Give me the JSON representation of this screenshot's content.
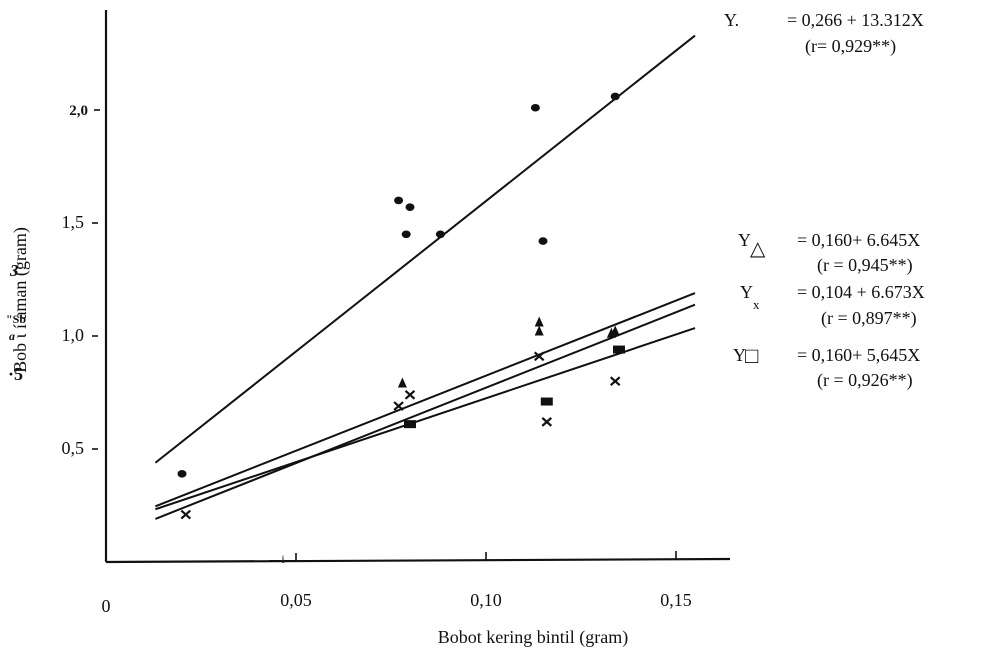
{
  "chart_data": {
    "type": "scatter",
    "title": "",
    "xlabel": "Bobot kering bintil (gram)",
    "ylabel": "Bob ι í aman (gram)",
    "ylabel_fragments": [
      "3",
      "\"Sb",
      "a",
      "·5"
    ],
    "xlim": [
      0,
      0.18
    ],
    "ylim": [
      0,
      2.3
    ],
    "x_tick_values": [
      0,
      0.05,
      0.1,
      0.15
    ],
    "x_tick_labels": [
      "0",
      "0,05",
      "0,10",
      "0,15"
    ],
    "x_axis_artifact": "—i—",
    "y_tick_values": [
      0.5,
      1.0,
      1.5,
      2.0
    ],
    "y_tick_labels": [
      "0,5",
      "1,0",
      "1,5",
      "2,0"
    ],
    "grid": false,
    "series": [
      {
        "marker": "dot",
        "points": [
          [
            0.02,
            0.39
          ],
          [
            0.077,
            1.6
          ],
          [
            0.08,
            1.57
          ],
          [
            0.079,
            1.45
          ],
          [
            0.088,
            1.45
          ],
          [
            0.113,
            2.01
          ],
          [
            0.134,
            2.06
          ],
          [
            0.115,
            1.42
          ]
        ],
        "fit": {
          "intercept": 0.266,
          "slope": 13.312,
          "x_range": [
            0.013,
            0.155
          ]
        }
      },
      {
        "marker": "triangle",
        "points": [
          [
            0.078,
            0.79
          ],
          [
            0.114,
            1.06
          ],
          [
            0.114,
            1.02
          ],
          [
            0.133,
            1.01
          ],
          [
            0.134,
            1.02
          ]
        ],
        "fit": {
          "intercept": 0.16,
          "slope": 6.645,
          "x_range": [
            0.013,
            0.155
          ]
        }
      },
      {
        "marker": "x",
        "points": [
          [
            0.021,
            0.21
          ],
          [
            0.077,
            0.69
          ],
          [
            0.08,
            0.74
          ],
          [
            0.114,
            0.91
          ],
          [
            0.116,
            0.62
          ],
          [
            0.134,
            0.8
          ]
        ],
        "fit": {
          "intercept": 0.104,
          "slope": 6.673,
          "x_range": [
            0.013,
            0.155
          ]
        }
      },
      {
        "marker": "square",
        "points": [
          [
            0.08,
            0.61
          ],
          [
            0.116,
            0.71
          ],
          [
            0.135,
            0.94
          ]
        ],
        "fit": {
          "intercept": 0.16,
          "slope": 5.645,
          "x_range": [
            0.013,
            0.155
          ]
        }
      }
    ],
    "equations": [
      {
        "symbol": "Y.",
        "line1": "= 0,266 + 13.312X",
        "line2": "(r= 0,929**)"
      },
      {
        "symbol": "Y",
        "line1": "= 0,160+ 6.645X",
        "line2": "(r = 0,945**)"
      },
      {
        "symbol": "Y",
        "line1": "= 0,104 + 6.673X",
        "line2": "(r = 0,897**)"
      },
      {
        "symbol": "Y",
        "line1": "= 0,160+ 5,645X",
        "line2": "(r = 0,926**)"
      }
    ],
    "equation_subscripts": [
      "△",
      "x",
      "□"
    ]
  }
}
